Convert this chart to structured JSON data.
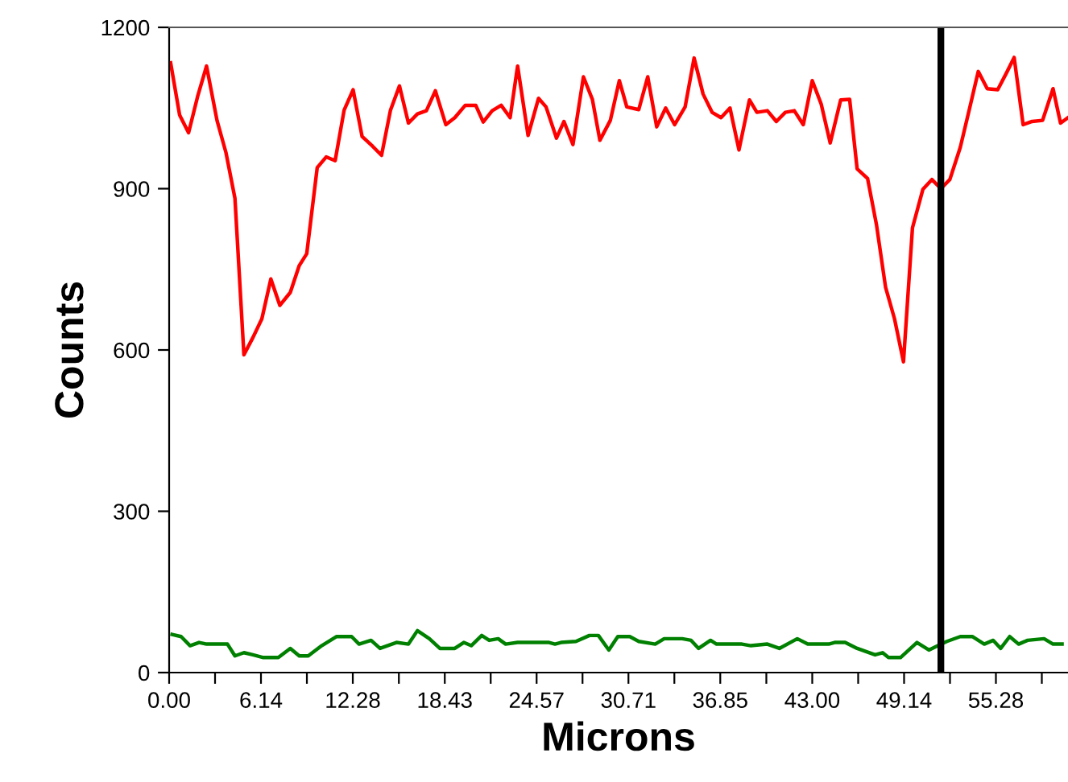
{
  "chart_data": {
    "type": "line",
    "xlabel": "Microns",
    "ylabel": "Counts",
    "xlim": [
      0,
      60.1
    ],
    "ylim": [
      0,
      1200
    ],
    "xticks": [
      {
        "value": 0,
        "label": "0.00"
      },
      {
        "value": 3.07,
        "label": null
      },
      {
        "value": 6.14,
        "label": "6.14"
      },
      {
        "value": 9.21,
        "label": null
      },
      {
        "value": 12.28,
        "label": "12.28"
      },
      {
        "value": 15.36,
        "label": null
      },
      {
        "value": 18.43,
        "label": "18.43"
      },
      {
        "value": 21.5,
        "label": null
      },
      {
        "value": 24.57,
        "label": "24.57"
      },
      {
        "value": 27.64,
        "label": null
      },
      {
        "value": 30.71,
        "label": "30.71"
      },
      {
        "value": 33.78,
        "label": null
      },
      {
        "value": 36.85,
        "label": "36.85"
      },
      {
        "value": 39.93,
        "label": null
      },
      {
        "value": 43.0,
        "label": "43.00"
      },
      {
        "value": 46.07,
        "label": null
      },
      {
        "value": 49.14,
        "label": "49.14"
      },
      {
        "value": 52.21,
        "label": null
      },
      {
        "value": 55.28,
        "label": "55.28"
      },
      {
        "value": 58.35,
        "label": null
      }
    ],
    "yticks": [
      0,
      300,
      600,
      900,
      1200
    ],
    "grid": false,
    "legend": false,
    "marker": "none",
    "line_style": "solid",
    "ref_lines": [
      {
        "axis": "x",
        "value": 51.6,
        "label": null,
        "color": "#000000"
      }
    ],
    "series": [
      {
        "color": "#ff0000",
        "x": [
          0.1,
          0.7,
          1.3,
          1.9,
          2.5,
          3.2,
          3.8,
          4.4,
          5.0,
          5.6,
          6.2,
          6.8,
          7.4,
          8.1,
          8.7,
          9.2,
          9.9,
          10.5,
          11.1,
          11.7,
          12.3,
          12.9,
          13.6,
          14.2,
          14.8,
          15.4,
          16.0,
          16.6,
          17.2,
          17.8,
          18.5,
          19.1,
          19.8,
          20.5,
          21.0,
          21.6,
          22.2,
          22.8,
          23.3,
          24.0,
          24.7,
          25.2,
          25.9,
          26.4,
          27.0,
          27.7,
          28.3,
          28.8,
          29.5,
          30.1,
          30.6,
          31.4,
          32.0,
          32.6,
          33.2,
          33.8,
          34.5,
          35.1,
          35.7,
          36.3,
          36.9,
          37.5,
          38.1,
          38.8,
          39.3,
          40.0,
          40.6,
          41.2,
          41.8,
          42.4,
          43.0,
          43.6,
          44.2,
          44.9,
          45.5,
          46.0,
          46.7,
          47.3,
          47.9,
          48.5,
          49.1,
          49.7,
          50.4,
          51.0,
          51.6,
          52.2,
          52.9,
          53.5,
          54.1,
          54.7,
          55.4,
          56.0,
          56.5,
          57.1,
          57.7,
          58.4,
          59.1,
          59.6,
          60.1
        ],
        "values": [
          1134,
          1037,
          1004,
          1071,
          1128,
          1027,
          967,
          882,
          591,
          623,
          658,
          732,
          683,
          707,
          757,
          779,
          939,
          959,
          952,
          1046,
          1084,
          997,
          979,
          962,
          1046,
          1091,
          1022,
          1039,
          1045,
          1082,
          1019,
          1032,
          1055,
          1055,
          1024,
          1045,
          1055,
          1032,
          1128,
          999,
          1068,
          1052,
          994,
          1025,
          982,
          1108,
          1066,
          990,
          1027,
          1101,
          1052,
          1047,
          1108,
          1015,
          1050,
          1019,
          1052,
          1143,
          1076,
          1042,
          1032,
          1050,
          972,
          1065,
          1042,
          1045,
          1025,
          1042,
          1045,
          1019,
          1101,
          1057,
          985,
          1065,
          1066,
          937,
          919,
          832,
          717,
          658,
          578,
          827,
          899,
          917,
          900,
          917,
          977,
          1047,
          1118,
          1086,
          1084,
          1116,
          1144,
          1019,
          1025,
          1027,
          1086,
          1022,
          1032
        ]
      },
      {
        "color": "#008000",
        "x": [
          0.2,
          0.8,
          1.4,
          2.0,
          2.5,
          3.9,
          4.4,
          5.0,
          5.6,
          6.3,
          7.3,
          8.1,
          8.7,
          9.3,
          10.2,
          11.2,
          12.2,
          12.7,
          13.5,
          14.1,
          15.2,
          16.0,
          16.6,
          17.4,
          18.1,
          19.1,
          19.7,
          20.2,
          20.9,
          21.4,
          22.0,
          22.5,
          23.3,
          25.4,
          25.8,
          26.2,
          27.2,
          28.1,
          28.7,
          29.4,
          30.0,
          30.8,
          31.4,
          32.5,
          33.1,
          34.3,
          34.9,
          35.4,
          36.2,
          36.6,
          38.3,
          38.9,
          40.0,
          40.8,
          42.0,
          42.7,
          44.1,
          44.5,
          45.2,
          46.0,
          47.2,
          47.7,
          48.1,
          48.9,
          50.0,
          50.8,
          51.4,
          52.0,
          52.9,
          53.7,
          54.5,
          55.1,
          55.6,
          56.2,
          56.8,
          57.4,
          58.5,
          59.1,
          59.7
        ],
        "values": [
          71,
          67,
          50,
          56,
          53,
          53,
          31,
          37,
          33,
          28,
          28,
          45,
          31,
          31,
          50,
          67,
          67,
          53,
          60,
          45,
          56,
          53,
          78,
          63,
          45,
          45,
          56,
          50,
          69,
          60,
          63,
          53,
          56,
          56,
          53,
          56,
          58,
          69,
          69,
          42,
          67,
          67,
          58,
          53,
          63,
          63,
          60,
          45,
          60,
          53,
          53,
          50,
          53,
          45,
          63,
          53,
          53,
          56,
          56,
          45,
          33,
          37,
          28,
          28,
          56,
          42,
          50,
          58,
          67,
          67,
          53,
          60,
          45,
          67,
          53,
          60,
          63,
          53,
          53
        ]
      }
    ]
  }
}
